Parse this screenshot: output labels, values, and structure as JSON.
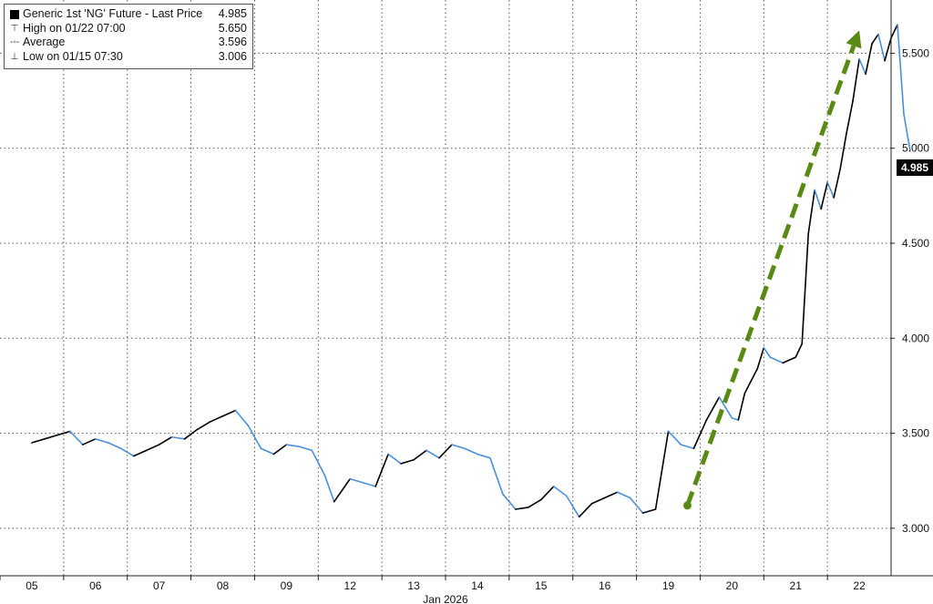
{
  "legend": {
    "title": "Generic 1st 'NG' Future - Last Price",
    "last_value": "4.985",
    "rows": [
      {
        "label": "High on 01/22 07:00",
        "value": "5.650",
        "icon": "high-marker-icon"
      },
      {
        "label": "Average",
        "value": "3.596",
        "icon": "average-marker-icon"
      },
      {
        "label": "Low on 01/15 07:30",
        "value": "3.006",
        "icon": "low-marker-icon"
      }
    ]
  },
  "last_price_badge": "4.985",
  "colors": {
    "line_up": "#000000",
    "line_down": "#4a90d9",
    "arrow": "#5a8a16",
    "grid": "#555555"
  },
  "chart_data": {
    "type": "line",
    "title": "Generic 1st 'NG' Future - Last Price",
    "xlabel": "Jan 2026",
    "ylabel": "",
    "ylim": [
      2.75,
      5.78
    ],
    "yticks": [
      "3.000",
      "3.500",
      "4.000",
      "4.500",
      "5.000",
      "5.500"
    ],
    "xticks": [
      "05",
      "06",
      "07",
      "08",
      "09",
      "12",
      "13",
      "14",
      "15",
      "16",
      "19",
      "20",
      "21",
      "22"
    ],
    "grid": true,
    "legend_position": "top-left",
    "series": [
      {
        "name": "Generic 1st 'NG' Future - Last Price",
        "x": [
          0.0,
          0.2,
          0.4,
          0.6,
          0.8,
          1.0,
          1.2,
          1.4,
          1.6,
          1.8,
          2.0,
          2.2,
          2.4,
          2.6,
          2.8,
          3.0,
          3.2,
          3.4,
          3.6,
          3.8,
          4.0,
          4.2,
          4.4,
          4.6,
          4.75,
          5.0,
          5.2,
          5.4,
          5.6,
          5.8,
          6.0,
          6.2,
          6.4,
          6.6,
          6.8,
          7.0,
          7.2,
          7.4,
          7.6,
          7.8,
          8.0,
          8.2,
          8.4,
          8.6,
          8.8,
          9.0,
          9.2,
          9.4,
          9.6,
          9.8,
          10.0,
          10.2,
          10.4,
          10.6,
          10.8,
          11.0,
          11.1,
          11.2,
          11.4,
          11.5,
          11.6,
          11.8,
          12.0,
          12.1,
          12.2,
          12.3,
          12.4,
          12.5,
          12.6,
          12.7,
          12.8,
          12.9,
          13.0,
          13.1,
          13.2,
          13.3,
          13.4,
          13.5,
          13.6,
          13.7,
          13.8
        ],
        "values": [
          3.45,
          3.47,
          3.49,
          3.51,
          3.44,
          3.47,
          3.45,
          3.42,
          3.38,
          3.41,
          3.44,
          3.48,
          3.47,
          3.52,
          3.56,
          3.59,
          3.62,
          3.54,
          3.42,
          3.39,
          3.44,
          3.43,
          3.41,
          3.28,
          3.14,
          3.26,
          3.24,
          3.22,
          3.39,
          3.34,
          3.36,
          3.41,
          3.37,
          3.44,
          3.42,
          3.39,
          3.37,
          3.18,
          3.1,
          3.11,
          3.15,
          3.22,
          3.17,
          3.06,
          3.13,
          3.16,
          3.19,
          3.16,
          3.08,
          3.1,
          3.51,
          3.44,
          3.42,
          3.57,
          3.69,
          3.58,
          3.57,
          3.71,
          3.84,
          3.95,
          3.9,
          3.87,
          3.9,
          3.97,
          4.55,
          4.78,
          4.68,
          4.82,
          4.74,
          4.89,
          5.08,
          5.25,
          5.47,
          5.39,
          5.55,
          5.6,
          5.46,
          5.58,
          5.65,
          5.18,
          4.985
        ]
      }
    ],
    "trend_arrow": {
      "from": [
        10.3,
        3.12
      ],
      "to": [
        13.0,
        5.62
      ]
    }
  }
}
